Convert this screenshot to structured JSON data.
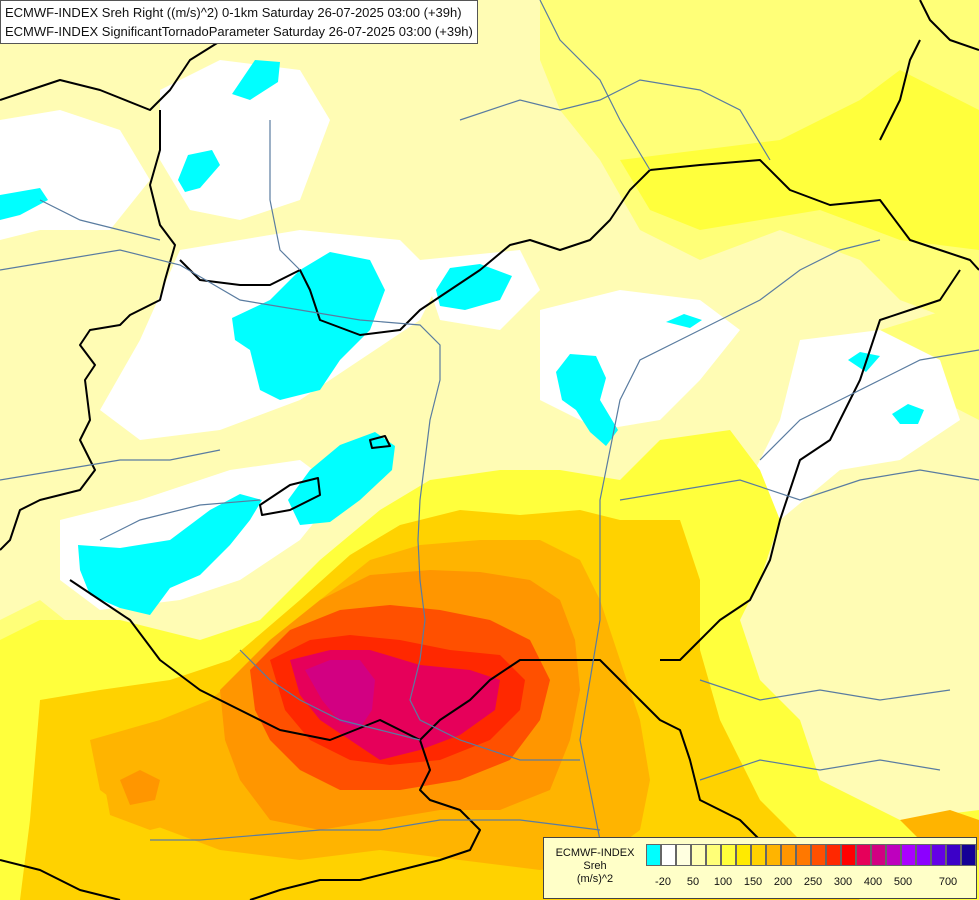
{
  "header": {
    "line1": "ECMWF-INDEX Sreh Right ((m/s)^2) 0-1km Saturday 26-07-2025 03:00 (+39h)",
    "line2": "ECMWF-INDEX SignificantTornadoParameter Saturday 26-07-2025 03:00 (+39h)"
  },
  "legend": {
    "title_line1": "ECMWF-INDEX",
    "title_line2": "Sreh",
    "title_line3": "(m/s)^2",
    "swatch_colors": [
      "#00ffff",
      "#ffffff",
      "#ffffe0",
      "#ffffb4",
      "#ffff78",
      "#ffff3c",
      "#ffea00",
      "#ffd200",
      "#ffb400",
      "#ff9600",
      "#ff7800",
      "#ff5000",
      "#ff2800",
      "#ff0000",
      "#e6005a",
      "#d20082",
      "#be00be",
      "#aa00ff",
      "#8c00ff",
      "#6400e6",
      "#3c00c8",
      "#140096"
    ],
    "tick_labels": [
      "-20",
      "50",
      "100",
      "150",
      "200",
      "250",
      "300",
      "400",
      "500",
      "700"
    ]
  },
  "colors": {
    "background": "#fffcb4",
    "cyan": "#00ffff",
    "white": "#ffffff",
    "yellow": "#ffff3c",
    "gold": "#ffd200",
    "orange": "#ff9600",
    "red": "#ff2800",
    "crimson": "#e6005a",
    "magenta": "#d20082",
    "border_line": "#000000",
    "river_line": "#5a7ca0"
  }
}
